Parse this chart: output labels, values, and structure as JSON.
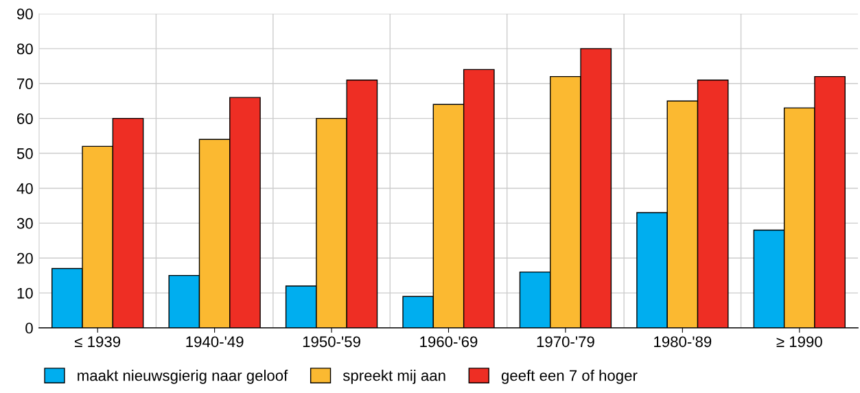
{
  "chart_data": {
    "type": "bar",
    "categories": [
      "≤ 1939",
      "1940-'49",
      "1950-'59",
      "1960-'69",
      "1970-'79",
      "1980-'89",
      "≥ 1990"
    ],
    "series": [
      {
        "name": "maakt nieuwsgierig naar geloof",
        "color": "#00aeef",
        "values": [
          17,
          15,
          12,
          9,
          16,
          33,
          28
        ]
      },
      {
        "name": "spreekt mij aan",
        "color": "#fbb931",
        "values": [
          52,
          54,
          60,
          64,
          72,
          65,
          63
        ]
      },
      {
        "name": "geeft een 7 of hoger",
        "color": "#ee2e24",
        "values": [
          60,
          66,
          71,
          74,
          80,
          71,
          72
        ]
      }
    ],
    "ylim": [
      0,
      90
    ],
    "yticks": [
      0,
      10,
      20,
      30,
      40,
      50,
      60,
      70,
      80,
      90
    ],
    "grid": true,
    "legend": "bottom"
  }
}
